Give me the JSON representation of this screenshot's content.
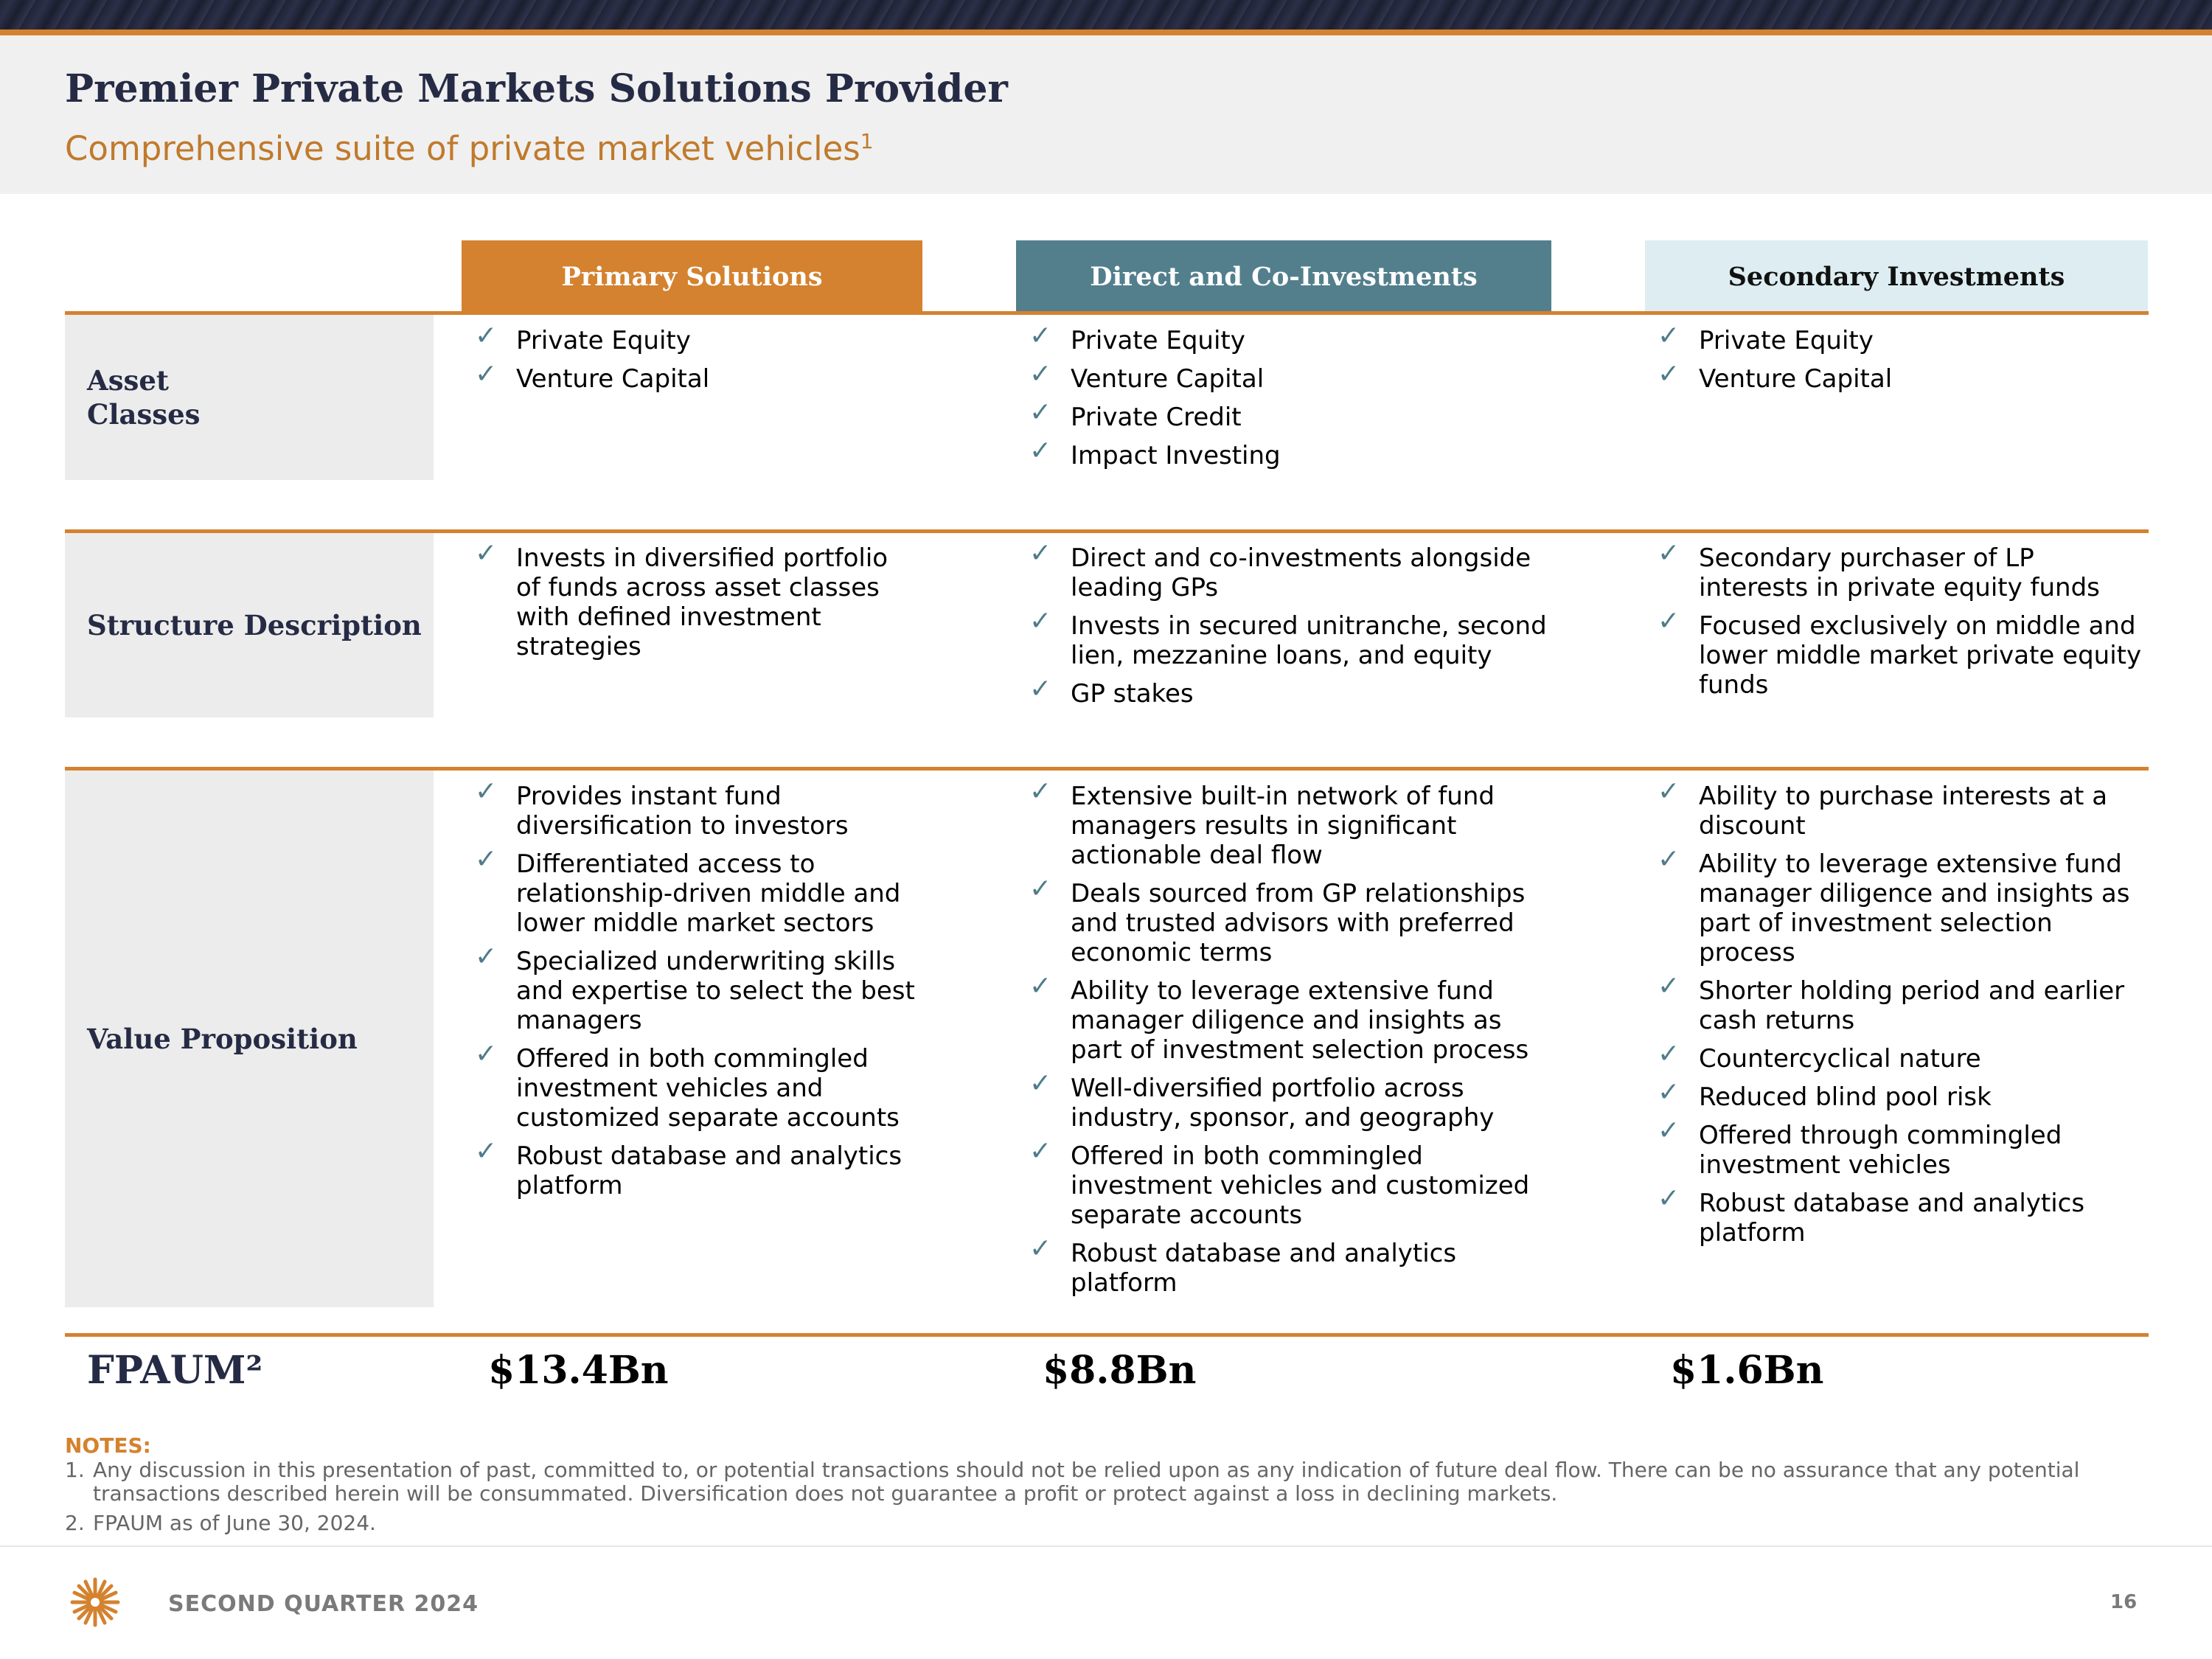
{
  "header": {
    "title": "Premier Private Markets Solutions Provider",
    "subtitle": "Comprehensive suite of private market vehicles",
    "subtitle_note": "1"
  },
  "columns": [
    "Primary Solutions",
    "Direct and Co-Investments",
    "Secondary Investments"
  ],
  "rows": {
    "asset_classes": {
      "label": "Asset Classes",
      "primary": [
        "Private Equity",
        "Venture Capital"
      ],
      "direct": [
        "Private Equity",
        "Venture Capital",
        "Private Credit",
        "Impact Investing"
      ],
      "secondary": [
        "Private Equity",
        "Venture Capital"
      ]
    },
    "structure": {
      "label": "Structure Description",
      "primary": [
        "Invests in diversified portfolio of funds across asset classes with defined investment strategies"
      ],
      "direct": [
        "Direct and co-investments alongside leading GPs",
        "Invests in secured unitranche, second lien, mezzanine loans, and equity",
        "GP stakes"
      ],
      "secondary": [
        "Secondary purchaser of LP interests in private equity funds",
        "Focused exclusively on middle and lower middle market private equity funds"
      ]
    },
    "value": {
      "label": "Value Proposition",
      "primary": [
        "Provides instant fund diversification to investors",
        "Differentiated access to relationship-driven middle and lower middle market sectors",
        "Specialized underwriting skills and expertise to select the best managers",
        "Offered in both commingled investment vehicles and customized separate accounts",
        "Robust database and analytics platform"
      ],
      "direct": [
        "Extensive built-in network of fund managers results in significant actionable deal flow",
        "Deals sourced from GP relationships and trusted advisors with preferred economic terms",
        "Ability to leverage extensive fund manager diligence and insights as part of investment selection process",
        "Well-diversified portfolio across industry, sponsor, and geography",
        "Offered in both commingled investment vehicles and customized separate accounts",
        "Robust database and analytics platform"
      ],
      "secondary": [
        "Ability to purchase interests at a discount",
        "Ability to leverage extensive fund manager diligence and insights as part of investment selection process",
        "Shorter holding period and earlier cash returns",
        "Countercyclical nature",
        "Reduced blind pool risk",
        "Offered through commingled investment vehicles",
        "Robust database and analytics platform"
      ]
    }
  },
  "fpaum": {
    "label": "FPAUM²",
    "primary": "$13.4Bn",
    "direct": "$8.8Bn",
    "secondary": "$1.6Bn"
  },
  "notes": {
    "title": "NOTES:",
    "items": [
      {
        "num": "1.",
        "text": "Any discussion in this presentation of past, committed to, or potential transactions should not be relied upon as any indication of future deal flow. There can be no assurance that any potential transactions described herein will be consummated. Diversification does not guarantee a profit or protect against a loss in declining markets."
      },
      {
        "num": "2.",
        "text": "FPAUM as of June 30, 2024."
      }
    ]
  },
  "footer": {
    "text": "SECOND QUARTER 2024",
    "page": "16",
    "logo_icon": "starburst-logo-icon"
  },
  "icons": {
    "check": "checkmark-icon",
    "check_glyph": "✓"
  },
  "colors": {
    "accent": "#d4822f",
    "teal": "#537f8d",
    "light_teal": "#ddedf1",
    "navy": "#262b45"
  }
}
